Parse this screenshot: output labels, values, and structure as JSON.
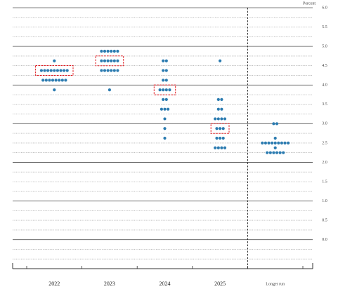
{
  "chart_data": {
    "type": "dot",
    "y_axis_label": "Percent",
    "categories": [
      "2022",
      "2023",
      "2024",
      "2025",
      "Longer run"
    ],
    "values": [
      [
        4.625,
        4.375,
        4.375,
        4.375,
        4.375,
        4.375,
        4.375,
        4.375,
        4.375,
        4.375,
        4.125,
        4.125,
        4.125,
        4.125,
        4.125,
        4.125,
        4.125,
        4.125,
        3.875
      ],
      [
        4.875,
        4.875,
        4.875,
        4.875,
        4.875,
        4.875,
        4.625,
        4.625,
        4.625,
        4.625,
        4.625,
        4.625,
        4.375,
        4.375,
        4.375,
        4.375,
        4.375,
        4.375,
        3.875
      ],
      [
        4.625,
        4.625,
        4.375,
        4.375,
        4.125,
        4.125,
        3.875,
        3.875,
        3.875,
        3.875,
        3.625,
        3.625,
        3.375,
        3.375,
        3.375,
        3.125,
        2.875,
        2.625
      ],
      [
        4.625,
        3.625,
        3.625,
        3.375,
        3.375,
        3.125,
        3.125,
        3.125,
        3.125,
        2.875,
        2.875,
        2.875,
        2.625,
        2.625,
        2.625,
        2.375,
        2.375,
        2.375,
        2.375
      ],
      [
        3.0,
        3.0,
        2.625,
        2.5,
        2.5,
        2.5,
        2.5,
        2.5,
        2.5,
        2.5,
        2.5,
        2.5,
        2.375,
        2.25,
        2.25,
        2.25,
        2.25,
        2.25,
        2.25
      ]
    ],
    "medians": [
      4.375,
      4.625,
      3.875,
      2.875,
      null
    ],
    "color": "#2b7bb0",
    "median_color": "#e0191f",
    "ylim": [
      -0.75,
      6
    ],
    "yticks": [
      {
        "value": 0,
        "label": "0.0"
      },
      {
        "value": 0.5,
        "label": "0.5"
      },
      {
        "value": 1,
        "label": "1.0"
      },
      {
        "value": 1.5,
        "label": "1.5"
      },
      {
        "value": 2,
        "label": "2.0"
      },
      {
        "value": 2.5,
        "label": "2.5"
      },
      {
        "value": 3,
        "label": "3.0"
      },
      {
        "value": 3.5,
        "label": "3.5"
      },
      {
        "value": 4,
        "label": "4.0"
      },
      {
        "value": 4.5,
        "label": "4.5"
      },
      {
        "value": 5,
        "label": "5.0"
      },
      {
        "value": 5.5,
        "label": "5.5"
      },
      {
        "value": 6,
        "label": "6.0"
      }
    ],
    "grid": true
  }
}
